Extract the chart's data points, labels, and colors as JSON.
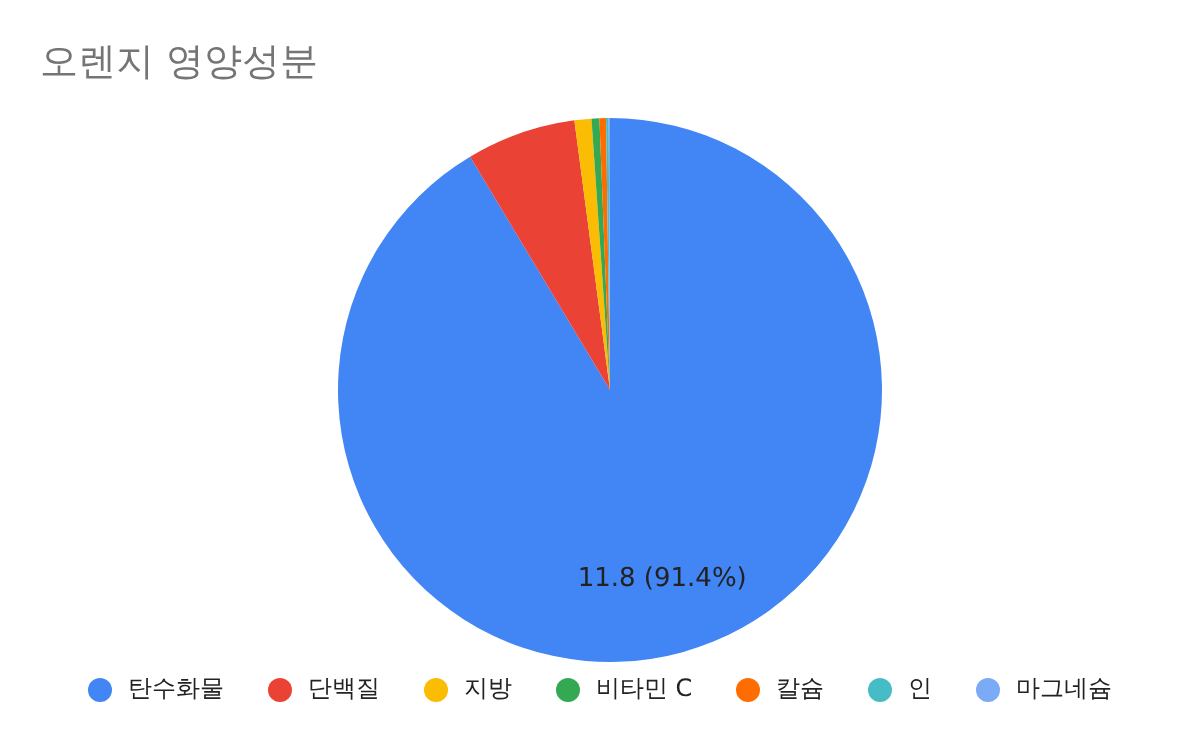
{
  "chart_data": {
    "type": "pie",
    "title": "오렌지 영양성분",
    "categories": [
      "탄수화물",
      "단백질",
      "지방",
      "비타민 C",
      "칼슘",
      "인",
      "마그네슘"
    ],
    "values": [
      11.8,
      0.84,
      0.13,
      0.06,
      0.05,
      0.02,
      0.01
    ],
    "colors": [
      "#4285f4",
      "#ea4335",
      "#fbbc04",
      "#34a853",
      "#ff6d01",
      "#46bdc6",
      "#7baaf7"
    ],
    "value_labels": [
      "11.8 (91.4%)",
      null,
      null,
      null,
      null,
      null,
      null
    ],
    "legend": "bottom"
  }
}
